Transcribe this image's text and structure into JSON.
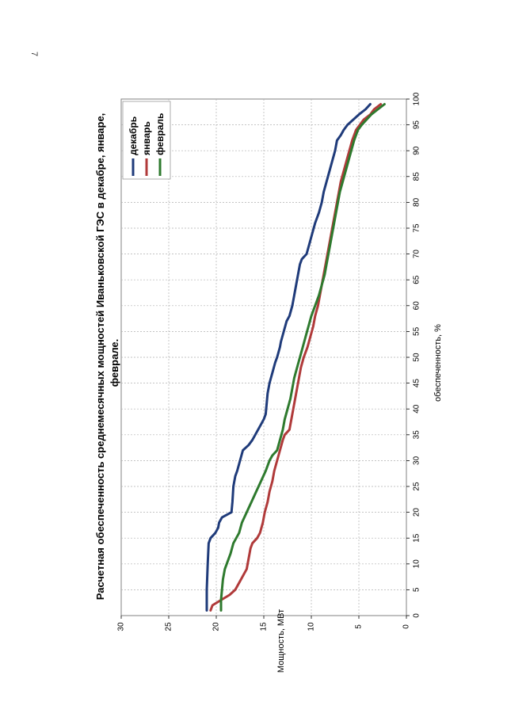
{
  "page_number": "7",
  "chart_data": {
    "type": "line",
    "title_line1": "Расчетная обеспеченность среднемесячных мощностей Иваньковской ГЭС в декабре, январе,",
    "title_line2": "феврале.",
    "xlabel": "обеспеченность, %",
    "ylabel": "Мощность, МВт",
    "xlim": [
      0,
      100
    ],
    "ylim": [
      0,
      30
    ],
    "x_ticks": [
      0,
      5,
      10,
      15,
      20,
      25,
      30,
      35,
      40,
      45,
      50,
      55,
      60,
      65,
      70,
      75,
      80,
      85,
      90,
      95,
      100
    ],
    "y_ticks": [
      0,
      5,
      10,
      15,
      20,
      25,
      30
    ],
    "grid": true,
    "legend_position": "top-right",
    "series": [
      {
        "name": "декабрь",
        "color": "#1f3b7a",
        "points": [
          [
            1,
            21.0
          ],
          [
            5,
            21.0
          ],
          [
            10,
            20.9
          ],
          [
            14,
            20.8
          ],
          [
            15,
            20.6
          ],
          [
            16,
            20.1
          ],
          [
            17,
            19.8
          ],
          [
            18,
            19.7
          ],
          [
            19,
            19.4
          ],
          [
            20,
            18.4
          ],
          [
            22,
            18.3
          ],
          [
            25,
            18.2
          ],
          [
            27,
            18.0
          ],
          [
            28,
            17.8
          ],
          [
            30,
            17.5
          ],
          [
            32,
            17.2
          ],
          [
            33,
            16.6
          ],
          [
            34,
            16.2
          ],
          [
            35,
            15.9
          ],
          [
            36,
            15.6
          ],
          [
            37,
            15.3
          ],
          [
            38,
            15.0
          ],
          [
            39,
            14.8
          ],
          [
            41,
            14.7
          ],
          [
            43,
            14.6
          ],
          [
            45,
            14.4
          ],
          [
            47,
            14.1
          ],
          [
            49,
            13.8
          ],
          [
            50,
            13.6
          ],
          [
            52,
            13.3
          ],
          [
            53,
            13.2
          ],
          [
            55,
            12.9
          ],
          [
            57,
            12.6
          ],
          [
            58,
            12.3
          ],
          [
            60,
            12.0
          ],
          [
            62,
            11.8
          ],
          [
            64,
            11.6
          ],
          [
            66,
            11.4
          ],
          [
            68,
            11.2
          ],
          [
            69,
            11.0
          ],
          [
            70,
            10.5
          ],
          [
            72,
            10.2
          ],
          [
            74,
            9.9
          ],
          [
            76,
            9.6
          ],
          [
            78,
            9.2
          ],
          [
            80,
            8.9
          ],
          [
            82,
            8.7
          ],
          [
            84,
            8.4
          ],
          [
            86,
            8.1
          ],
          [
            88,
            7.8
          ],
          [
            90,
            7.5
          ],
          [
            92,
            7.3
          ],
          [
            93,
            6.9
          ],
          [
            94,
            6.6
          ],
          [
            95,
            6.2
          ],
          [
            96,
            5.6
          ],
          [
            97,
            5.0
          ],
          [
            98,
            4.3
          ],
          [
            99,
            3.8
          ]
        ]
      },
      {
        "name": "январь",
        "color": "#b03a3a",
        "points": [
          [
            1,
            20.6
          ],
          [
            2,
            20.4
          ],
          [
            3,
            19.5
          ],
          [
            4,
            18.6
          ],
          [
            5,
            18.0
          ],
          [
            6,
            17.7
          ],
          [
            7,
            17.4
          ],
          [
            8,
            17.1
          ],
          [
            9,
            16.8
          ],
          [
            10,
            16.7
          ],
          [
            12,
            16.5
          ],
          [
            13,
            16.4
          ],
          [
            14,
            16.2
          ],
          [
            15,
            15.7
          ],
          [
            16,
            15.4
          ],
          [
            18,
            15.1
          ],
          [
            20,
            14.9
          ],
          [
            22,
            14.6
          ],
          [
            24,
            14.4
          ],
          [
            26,
            14.1
          ],
          [
            28,
            13.9
          ],
          [
            30,
            13.6
          ],
          [
            32,
            13.3
          ],
          [
            34,
            13.0
          ],
          [
            35,
            12.8
          ],
          [
            36,
            12.3
          ],
          [
            38,
            12.1
          ],
          [
            40,
            11.9
          ],
          [
            42,
            11.7
          ],
          [
            44,
            11.5
          ],
          [
            46,
            11.3
          ],
          [
            48,
            11.1
          ],
          [
            50,
            10.8
          ],
          [
            52,
            10.4
          ],
          [
            54,
            10.1
          ],
          [
            56,
            9.8
          ],
          [
            58,
            9.6
          ],
          [
            60,
            9.3
          ],
          [
            62,
            9.1
          ],
          [
            64,
            8.9
          ],
          [
            66,
            8.7
          ],
          [
            68,
            8.5
          ],
          [
            70,
            8.3
          ],
          [
            72,
            8.1
          ],
          [
            74,
            7.9
          ],
          [
            76,
            7.7
          ],
          [
            78,
            7.5
          ],
          [
            80,
            7.3
          ],
          [
            82,
            7.1
          ],
          [
            84,
            6.9
          ],
          [
            86,
            6.6
          ],
          [
            88,
            6.3
          ],
          [
            90,
            6.0
          ],
          [
            92,
            5.7
          ],
          [
            94,
            5.3
          ],
          [
            95,
            4.9
          ],
          [
            96,
            4.5
          ],
          [
            97,
            3.8
          ],
          [
            98,
            3.4
          ],
          [
            99,
            2.7
          ]
        ]
      },
      {
        "name": "февраль",
        "color": "#2e7a2e",
        "points": [
          [
            1,
            19.5
          ],
          [
            3,
            19.5
          ],
          [
            5,
            19.4
          ],
          [
            7,
            19.3
          ],
          [
            9,
            19.1
          ],
          [
            10,
            18.9
          ],
          [
            11,
            18.7
          ],
          [
            12,
            18.5
          ],
          [
            14,
            18.2
          ],
          [
            15,
            17.9
          ],
          [
            16,
            17.6
          ],
          [
            18,
            17.3
          ],
          [
            20,
            16.8
          ],
          [
            22,
            16.3
          ],
          [
            24,
            15.8
          ],
          [
            26,
            15.3
          ],
          [
            28,
            14.8
          ],
          [
            30,
            14.4
          ],
          [
            31,
            14.1
          ],
          [
            32,
            13.6
          ],
          [
            34,
            13.3
          ],
          [
            36,
            13.0
          ],
          [
            38,
            12.8
          ],
          [
            40,
            12.5
          ],
          [
            42,
            12.2
          ],
          [
            44,
            12.0
          ],
          [
            46,
            11.8
          ],
          [
            48,
            11.5
          ],
          [
            50,
            11.2
          ],
          [
            52,
            10.9
          ],
          [
            54,
            10.6
          ],
          [
            56,
            10.3
          ],
          [
            58,
            10.0
          ],
          [
            60,
            9.6
          ],
          [
            62,
            9.2
          ],
          [
            64,
            8.9
          ],
          [
            66,
            8.6
          ],
          [
            68,
            8.4
          ],
          [
            70,
            8.2
          ],
          [
            72,
            8.0
          ],
          [
            74,
            7.8
          ],
          [
            76,
            7.6
          ],
          [
            78,
            7.4
          ],
          [
            80,
            7.2
          ],
          [
            82,
            7.0
          ],
          [
            84,
            6.7
          ],
          [
            86,
            6.4
          ],
          [
            88,
            6.1
          ],
          [
            90,
            5.8
          ],
          [
            92,
            5.5
          ],
          [
            94,
            5.1
          ],
          [
            95,
            4.7
          ],
          [
            96,
            4.2
          ],
          [
            97,
            3.7
          ],
          [
            98,
            3.0
          ],
          [
            99,
            2.3
          ]
        ]
      }
    ]
  }
}
